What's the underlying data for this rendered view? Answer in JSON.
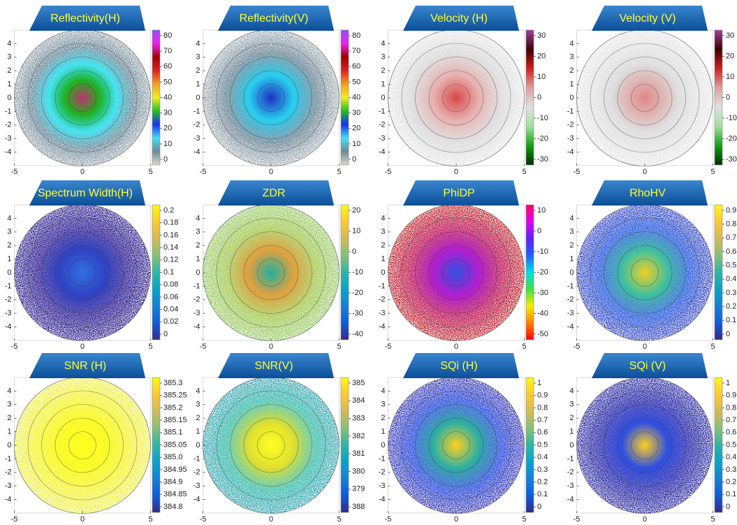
{
  "chart_data": [
    {
      "type": "radar-ppi",
      "title": "Reflectivity(H)",
      "xlim": [
        -5,
        5
      ],
      "xticks": [
        -5,
        0,
        5
      ],
      "ylim": [
        -5,
        5
      ],
      "yticks": [
        -4,
        -3,
        -2,
        -1,
        0,
        1,
        2,
        3,
        4
      ],
      "colorbar": {
        "ticks": [
          0,
          10,
          20,
          30,
          40,
          50,
          60,
          70,
          80
        ],
        "colors": [
          "#d8d8cc",
          "#6f8898",
          "#40e0f8",
          "#1830f0",
          "#20c020",
          "#f0f020",
          "#f0a020",
          "#e02020",
          "#a00000",
          "#f020f0",
          "#9050f0"
        ]
      }
    },
    {
      "type": "radar-ppi",
      "title": "Reflectivity(V)",
      "xlim": [
        -5,
        5
      ],
      "xticks": [
        -5,
        0,
        5
      ],
      "ylim": [
        -5,
        5
      ],
      "yticks": [
        -4,
        -3,
        -2,
        -1,
        0,
        1,
        2,
        3,
        4
      ],
      "colorbar": {
        "ticks": [
          0,
          10,
          20,
          30,
          40,
          50,
          60,
          70,
          80
        ],
        "colors": [
          "#d8d8cc",
          "#6f8898",
          "#40e0f8",
          "#1830f0",
          "#20c020",
          "#f0f020",
          "#f0a020",
          "#e02020",
          "#a00000",
          "#f020f0",
          "#9050f0"
        ]
      }
    },
    {
      "type": "radar-ppi",
      "title": "Velocity (H)",
      "xlim": [
        -5,
        5
      ],
      "xticks": [
        -5,
        0,
        5
      ],
      "ylim": [
        -5,
        5
      ],
      "yticks": [
        -4,
        -3,
        -2,
        -1,
        0,
        1,
        2,
        3,
        4
      ],
      "colorbar": {
        "ticks": [
          -30,
          -20,
          -10,
          0,
          10,
          20,
          30
        ],
        "colors": [
          "#003000",
          "#10a010",
          "#a0e0a0",
          "#e0e0e0",
          "#e0a0a0",
          "#d02020",
          "#400000",
          "#a040a0"
        ]
      }
    },
    {
      "type": "radar-ppi",
      "title": "Velocity (V)",
      "xlim": [
        -5,
        5
      ],
      "xticks": [
        -5,
        0,
        5
      ],
      "ylim": [
        -5,
        5
      ],
      "yticks": [
        -4,
        -3,
        -2,
        -1,
        0,
        1,
        2,
        3,
        4
      ],
      "colorbar": {
        "ticks": [
          -30,
          -20,
          -10,
          0,
          10,
          20,
          30
        ],
        "colors": [
          "#003000",
          "#10a010",
          "#a0e0a0",
          "#e0e0e0",
          "#e0a0a0",
          "#d02020",
          "#400000",
          "#a040a0"
        ]
      }
    },
    {
      "type": "radar-ppi",
      "title": "Spectrum Width(H)",
      "xlim": [
        -5,
        5
      ],
      "xticks": [
        -5,
        0,
        5
      ],
      "ylim": [
        -5,
        5
      ],
      "yticks": [
        -4,
        -3,
        -2,
        -1,
        0,
        1,
        2,
        3,
        4
      ],
      "colorbar": {
        "ticks": [
          0,
          0.02,
          0.04,
          0.06,
          0.08,
          0.1,
          0.12,
          0.14,
          0.16,
          0.18,
          0.2
        ],
        "colors": [
          "#352a87",
          "#0f5cdd",
          "#1481d6",
          "#06a4ca",
          "#2eb7a4",
          "#87bf77",
          "#d1bb59",
          "#fec832",
          "#f9fb0e"
        ]
      }
    },
    {
      "type": "radar-ppi",
      "title": "ZDR",
      "xlim": [
        -5,
        5
      ],
      "xticks": [
        -5,
        0,
        5
      ],
      "ylim": [
        -5,
        5
      ],
      "yticks": [
        -4,
        -3,
        -2,
        -1,
        0,
        1,
        2,
        3,
        4
      ],
      "colorbar": {
        "ticks": [
          -40,
          -30,
          -20,
          -10,
          0,
          10,
          20
        ],
        "colors": [
          "#352a87",
          "#0f5cdd",
          "#1481d6",
          "#06a4ca",
          "#2eb7a4",
          "#87bf77",
          "#d1bb59",
          "#fec832",
          "#f9fb0e"
        ]
      }
    },
    {
      "type": "radar-ppi",
      "title": "PhiDP",
      "xlim": [
        -5,
        5
      ],
      "xticks": [
        -5,
        0,
        5
      ],
      "ylim": [
        -5,
        5
      ],
      "yticks": [
        -4,
        -3,
        -2,
        -1,
        0,
        1,
        2,
        3,
        4
      ],
      "colorbar": {
        "ticks": [
          -50,
          -40,
          -30,
          -20,
          -10,
          0,
          10
        ],
        "colors": [
          "#ff0000",
          "#ff8000",
          "#f0f000",
          "#40e040",
          "#00e0e0",
          "#2060ff",
          "#6020ff",
          "#e000f0",
          "#ff0060"
        ]
      }
    },
    {
      "type": "radar-ppi",
      "title": "RhoHV",
      "xlim": [
        -5,
        5
      ],
      "xticks": [
        -5,
        0,
        5
      ],
      "ylim": [
        -5,
        5
      ],
      "yticks": [
        -4,
        -3,
        -2,
        -1,
        0,
        1,
        2,
        3,
        4
      ],
      "colorbar": {
        "ticks": [
          0,
          0.1,
          0.2,
          0.3,
          0.4,
          0.5,
          0.6,
          0.7,
          0.8,
          0.9
        ],
        "colors": [
          "#352a87",
          "#0f5cdd",
          "#1481d6",
          "#06a4ca",
          "#2eb7a4",
          "#87bf77",
          "#d1bb59",
          "#fec832",
          "#f9fb0e"
        ]
      }
    },
    {
      "type": "radar-ppi",
      "title": "SNR (H)",
      "xlim": [
        -5,
        5
      ],
      "xticks": [
        -5,
        0,
        5
      ],
      "ylim": [
        -5,
        5
      ],
      "yticks": [
        -4,
        -3,
        -2,
        -1,
        0,
        1,
        2,
        3,
        4
      ],
      "colorbar": {
        "ticks": [
          384.8,
          384.85,
          384.9,
          384.95,
          {
            "value": 385,
            "label": "385.0"
          },
          385.05,
          385.1,
          385.15,
          385.2,
          385.25,
          385.3
        ],
        "colors": [
          "#352a87",
          "#0f5cdd",
          "#1481d6",
          "#06a4ca",
          "#2eb7a4",
          "#87bf77",
          "#d1bb59",
          "#fec832",
          "#f9fb0e"
        ]
      }
    },
    {
      "type": "radar-ppi",
      "title": "SNR(V)",
      "xlim": [
        -5,
        5
      ],
      "xticks": [
        -5,
        0,
        5
      ],
      "ylim": [
        -5,
        5
      ],
      "yticks": [
        -4,
        -3,
        -2,
        -1,
        0,
        1,
        2,
        3,
        4
      ],
      "colorbar": {
        "ticks": [
          388,
          379,
          380,
          381,
          382,
          383,
          384,
          385
        ],
        "colors": [
          "#352a87",
          "#0f5cdd",
          "#1481d6",
          "#06a4ca",
          "#2eb7a4",
          "#87bf77",
          "#d1bb59",
          "#fec832",
          "#f9fb0e"
        ]
      }
    },
    {
      "type": "radar-ppi",
      "title": "SQi (H)",
      "xlim": [
        -5,
        5
      ],
      "xticks": [
        -5,
        0,
        5
      ],
      "ylim": [
        -5,
        5
      ],
      "yticks": [
        -4,
        -3,
        -2,
        -1,
        0,
        1,
        2,
        3,
        4
      ],
      "colorbar": {
        "ticks": [
          0,
          0.1,
          0.2,
          0.3,
          0.4,
          0.5,
          0.6,
          0.7,
          0.8,
          0.9,
          1
        ],
        "colors": [
          "#352a87",
          "#0f5cdd",
          "#1481d6",
          "#06a4ca",
          "#2eb7a4",
          "#87bf77",
          "#d1bb59",
          "#fec832",
          "#f9fb0e"
        ]
      }
    },
    {
      "type": "radar-ppi",
      "title": "SQi (V)",
      "xlim": [
        -5,
        5
      ],
      "xticks": [
        -5,
        0,
        5
      ],
      "ylim": [
        -5,
        5
      ],
      "yticks": [
        -4,
        -3,
        -2,
        -1,
        0,
        1,
        2,
        3,
        4
      ],
      "colorbar": {
        "ticks": [
          0,
          0.1,
          0.2,
          0.3,
          0.4,
          0.5,
          0.6,
          0.7,
          0.8,
          0.9,
          1
        ],
        "colors": [
          "#352a87",
          "#0f5cdd",
          "#1481d6",
          "#06a4ca",
          "#2eb7a4",
          "#87bf77",
          "#d1bb59",
          "#fec832",
          "#f9fb0e"
        ]
      }
    }
  ]
}
